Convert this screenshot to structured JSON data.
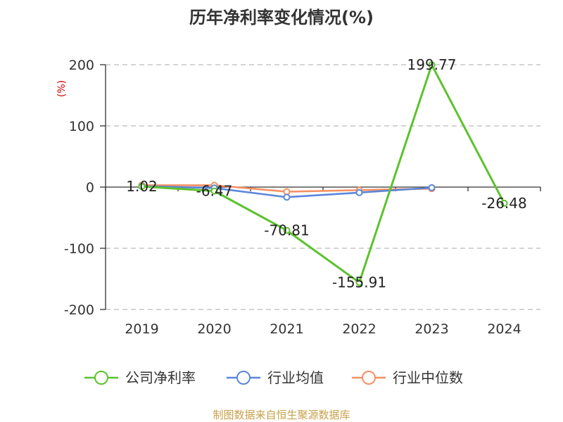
{
  "chart_data": {
    "type": "line",
    "title": "历年净利率变化情况(%)",
    "ylabel": "(%)",
    "categories": [
      "2019",
      "2020",
      "2021",
      "2022",
      "2023",
      "2024"
    ],
    "ylim": [
      -200,
      200
    ],
    "yticks": [
      200,
      100,
      0,
      -100,
      -200
    ],
    "grid": true,
    "legend_position": "bottom",
    "series": [
      {
        "name": "公司净利率",
        "color": "#5cc22e",
        "values": [
          1.02,
          -6.47,
          -70.81,
          -155.91,
          199.77,
          -26.48
        ],
        "labels": [
          "1.02",
          "-6.47",
          "-70.81",
          "-155.91",
          "199.77",
          "-26.48"
        ]
      },
      {
        "name": "行业均值",
        "color": "#5b86d9",
        "values": [
          1.5,
          -1.5,
          -16.5,
          -9.0,
          -1.0,
          null
        ]
      },
      {
        "name": "行业中位数",
        "color": "#f59062",
        "values": [
          3.0,
          3.0,
          -7.5,
          -5.0,
          -2.5,
          null
        ]
      }
    ]
  },
  "source": "制图数据来自恒生聚源数据库"
}
